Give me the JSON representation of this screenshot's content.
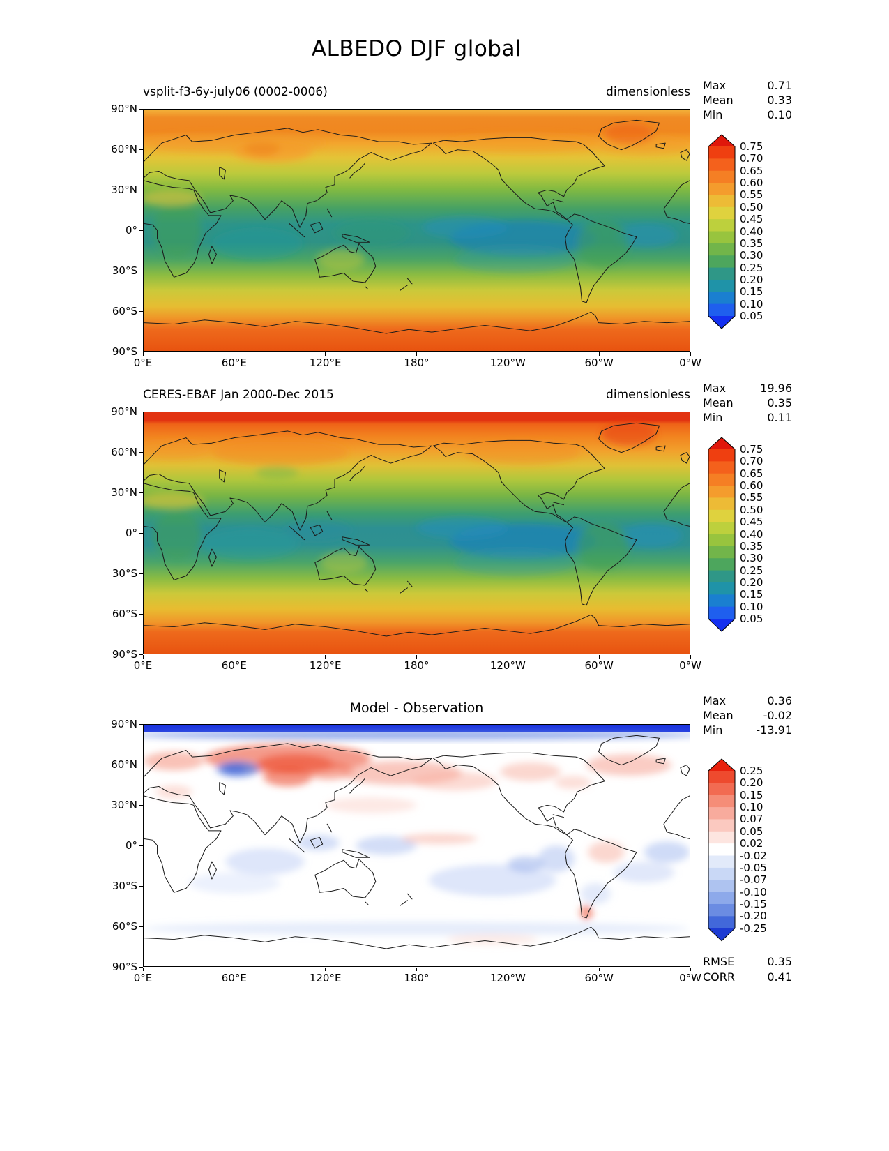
{
  "figure": {
    "title": "ALBEDO DJF global"
  },
  "axes": {
    "y_ticks": [
      "90°N",
      "60°N",
      "30°N",
      "0°",
      "30°S",
      "60°S",
      "90°S"
    ],
    "x_ticks": [
      "0°E",
      "60°E",
      "120°E",
      "180°",
      "120°W",
      "60°W",
      "0°W"
    ]
  },
  "panels": [
    {
      "subtitle": "vsplit-f3-6y-july06 (0002-0006)",
      "units": "dimensionless",
      "stats": [
        {
          "label": "Max",
          "value": "0.71"
        },
        {
          "label": "Mean",
          "value": "0.33"
        },
        {
          "label": "Min",
          "value": "0.10"
        }
      ],
      "colorbar": {
        "tick_labels": [
          "0.75",
          "0.70",
          "0.65",
          "0.60",
          "0.55",
          "0.50",
          "0.45",
          "0.40",
          "0.35",
          "0.30",
          "0.25",
          "0.20",
          "0.15",
          "0.10",
          "0.05"
        ],
        "colors": [
          "#e0170b",
          "#ef3f10",
          "#f4611c",
          "#f57f24",
          "#f49c2d",
          "#edbb36",
          "#dfd23e",
          "#bdd03d",
          "#98c43e",
          "#72b54a",
          "#4da65d",
          "#2f9787",
          "#1f93a8",
          "#1a7fd0",
          "#1f5fee",
          "#1430f0"
        ]
      }
    },
    {
      "subtitle": "CERES-EBAF Jan 2000-Dec 2015",
      "units": "dimensionless",
      "stats": [
        {
          "label": "Max",
          "value": "19.96"
        },
        {
          "label": "Mean",
          "value": "0.35"
        },
        {
          "label": "Min",
          "value": "0.11"
        }
      ],
      "colorbar": {
        "tick_labels": [
          "0.75",
          "0.70",
          "0.65",
          "0.60",
          "0.55",
          "0.50",
          "0.45",
          "0.40",
          "0.35",
          "0.30",
          "0.25",
          "0.20",
          "0.15",
          "0.10",
          "0.05"
        ],
        "colors": [
          "#e0170b",
          "#ef3f10",
          "#f4611c",
          "#f57f24",
          "#f49c2d",
          "#edbb36",
          "#dfd23e",
          "#bdd03d",
          "#98c43e",
          "#72b54a",
          "#4da65d",
          "#2f9787",
          "#1f93a8",
          "#1a7fd0",
          "#1f5fee",
          "#1430f0"
        ]
      }
    },
    {
      "subtitle": "Model - Observation",
      "stats": [
        {
          "label": "Max",
          "value": "0.36"
        },
        {
          "label": "Mean",
          "value": "-0.02"
        },
        {
          "label": "Min",
          "value": "-13.91"
        }
      ],
      "footer_stats": [
        {
          "label": "RMSE",
          "value": "0.35"
        },
        {
          "label": "CORR",
          "value": "0.41"
        }
      ],
      "colorbar": {
        "tick_labels": [
          "0.25",
          "0.20",
          "0.15",
          "0.10",
          "0.07",
          "0.05",
          "0.02",
          "-0.02",
          "-0.05",
          "-0.07",
          "-0.10",
          "-0.15",
          "-0.20",
          "-0.25"
        ],
        "colors": [
          "#e8200c",
          "#ee4a2e",
          "#f26b52",
          "#f58d78",
          "#f8ab9d",
          "#fbc9c0",
          "#fde5e0",
          "#ffffff",
          "#e2eafa",
          "#c9d8f6",
          "#aec3f0",
          "#8da9ea",
          "#6b8ce2",
          "#4268da",
          "#1d3bd2"
        ]
      }
    }
  ],
  "chart_data": [
    {
      "type": "heatmap",
      "variable": "ALBEDO",
      "season": "DJF",
      "region": "global",
      "title": "vsplit-f3-6y-july06 (0002-0006)",
      "units": "dimensionless",
      "stats": {
        "max": 0.71,
        "mean": 0.33,
        "min": 0.1
      },
      "colorbar_levels": [
        0.05,
        0.1,
        0.15,
        0.2,
        0.25,
        0.3,
        0.35,
        0.4,
        0.45,
        0.5,
        0.55,
        0.6,
        0.65,
        0.7,
        0.75
      ],
      "x_ticks": [
        "0°E",
        "60°E",
        "120°E",
        "180°",
        "120°W",
        "60°W",
        "0°W"
      ],
      "y_ticks": [
        "90°N",
        "60°N",
        "30°N",
        "0°",
        "30°S",
        "60°S",
        "90°S"
      ],
      "legend_position": "right"
    },
    {
      "type": "heatmap",
      "variable": "ALBEDO",
      "season": "DJF",
      "region": "global",
      "title": "CERES-EBAF Jan 2000-Dec 2015",
      "units": "dimensionless",
      "stats": {
        "max": 19.96,
        "mean": 0.35,
        "min": 0.11
      },
      "colorbar_levels": [
        0.05,
        0.1,
        0.15,
        0.2,
        0.25,
        0.3,
        0.35,
        0.4,
        0.45,
        0.5,
        0.55,
        0.6,
        0.65,
        0.7,
        0.75
      ],
      "x_ticks": [
        "0°E",
        "60°E",
        "120°E",
        "180°",
        "120°W",
        "60°W",
        "0°W"
      ],
      "y_ticks": [
        "90°N",
        "60°N",
        "30°N",
        "0°",
        "30°S",
        "60°S",
        "90°S"
      ],
      "legend_position": "right"
    },
    {
      "type": "heatmap",
      "variable": "ALBEDO difference",
      "title": "Model - Observation",
      "stats": {
        "max": 0.36,
        "mean": -0.02,
        "min": -13.91,
        "rmse": 0.35,
        "corr": 0.41
      },
      "colorbar_levels": [
        -0.25,
        -0.2,
        -0.15,
        -0.1,
        -0.07,
        -0.05,
        -0.02,
        0.02,
        0.05,
        0.07,
        0.1,
        0.15,
        0.2,
        0.25
      ],
      "x_ticks": [
        "0°E",
        "60°E",
        "120°E",
        "180°",
        "120°W",
        "60°W",
        "0°W"
      ],
      "y_ticks": [
        "90°N",
        "60°N",
        "30°N",
        "0°",
        "30°S",
        "60°S",
        "90°S"
      ],
      "legend_position": "right"
    }
  ]
}
